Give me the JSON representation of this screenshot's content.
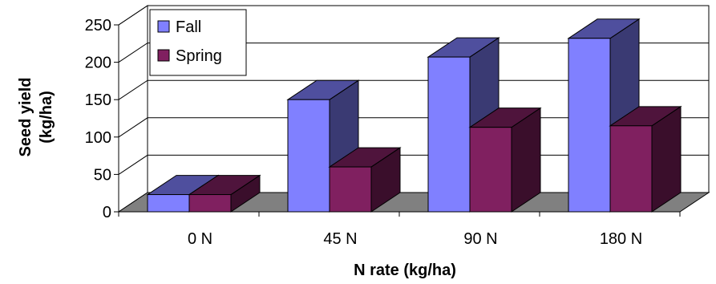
{
  "chart_data": {
    "type": "bar",
    "categories": [
      "0 N",
      "45 N",
      "90 N",
      "180 N"
    ],
    "series": [
      {
        "name": "Fall",
        "values": [
          23,
          150,
          207,
          232
        ],
        "color": "#8080ff"
      },
      {
        "name": "Spring",
        "values": [
          23,
          60,
          113,
          115
        ],
        "color": "#802060"
      }
    ],
    "xlabel": "N rate (kg/ha)",
    "ylabel": [
      "Seed yield",
      "(kg/ha)"
    ],
    "ylim": [
      0,
      250
    ],
    "yticks": [
      0,
      50,
      100,
      150,
      200,
      250
    ],
    "grid": true,
    "three_d": true,
    "legend_position": "top-left",
    "colors": {
      "wall": "#ffffff",
      "floor": "#808080",
      "grid": "#000000"
    }
  }
}
